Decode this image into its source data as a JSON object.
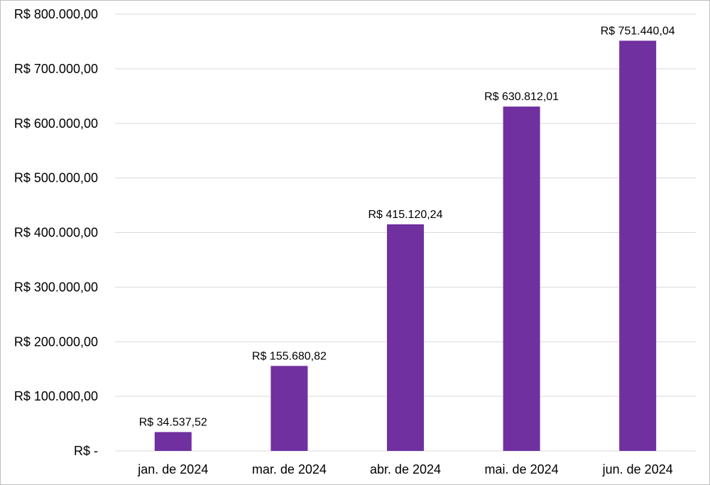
{
  "chart_data": {
    "type": "bar",
    "title": "",
    "xlabel": "",
    "ylabel": "",
    "categories": [
      "jan. de 2024",
      "mar. de 2024",
      "abr. de 2024",
      "mai. de 2024",
      "jun. de 2024"
    ],
    "series": [
      {
        "values": [
          34537.52,
          155680.82,
          415120.24,
          630812.01,
          751440.04
        ],
        "data_labels": [
          "R$ 34.537,52",
          "R$ 155.680,82",
          "R$ 415.120,24",
          "R$ 630.812,01",
          "R$ 751.440,04"
        ],
        "color": "#7030a0"
      }
    ],
    "ylim": [
      0,
      800000
    ],
    "yticks": [
      0,
      100000,
      200000,
      300000,
      400000,
      500000,
      600000,
      700000,
      800000
    ],
    "ytick_labels": [
      "R$ -",
      "R$ 100.000,00",
      "R$ 200.000,00",
      "R$ 300.000,00",
      "R$ 400.000,00",
      "R$ 500.000,00",
      "R$ 600.000,00",
      "R$ 700.000,00",
      "R$ 800.000,00"
    ],
    "grid": true,
    "legend": "none",
    "colors": {
      "bar": "#7030a0",
      "grid": "#d9d9d9",
      "border": "#bfbfbf"
    }
  }
}
